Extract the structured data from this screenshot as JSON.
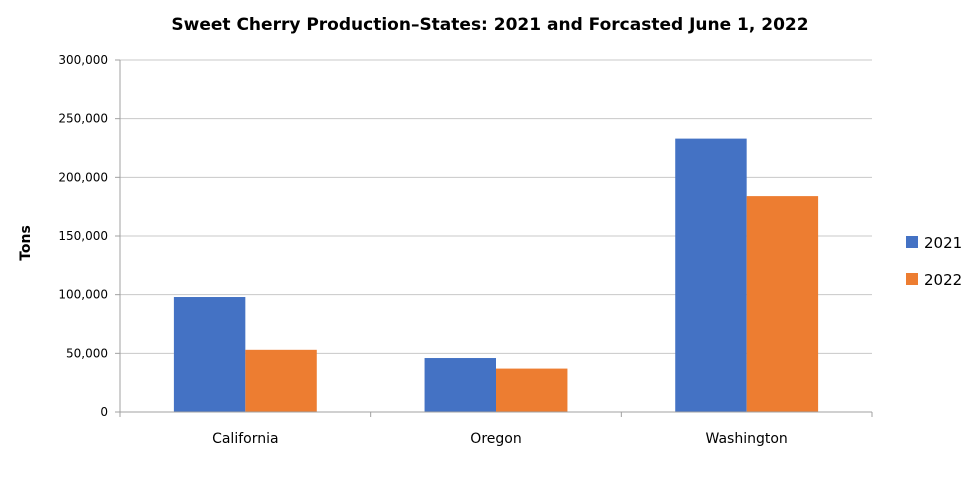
{
  "chart_data": {
    "type": "bar",
    "title": "Sweet Cherry Production–States: 2021 and Forcasted June 1, 2022",
    "xlabel": "",
    "ylabel": "Tons",
    "categories": [
      "California",
      "Oregon",
      "Washington"
    ],
    "series": [
      {
        "name": "2021",
        "values": [
          98000,
          46000,
          233000
        ],
        "color": "#4472C4"
      },
      {
        "name": "2022",
        "values": [
          53000,
          37000,
          184000
        ],
        "color": "#ED7D31"
      }
    ],
    "ylim": [
      0,
      300000
    ],
    "yticks": [
      0,
      50000,
      100000,
      150000,
      200000,
      250000,
      300000
    ],
    "ytick_labels": [
      "0",
      "50,000",
      "100,000",
      "150,000",
      "200,000",
      "250,000",
      "300,000"
    ],
    "grid": true,
    "legend_position": "right"
  }
}
